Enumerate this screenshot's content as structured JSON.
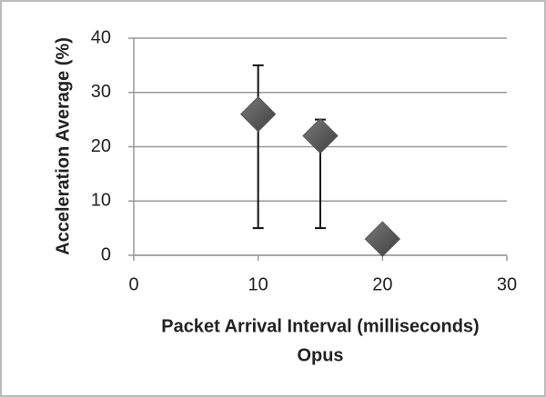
{
  "chart_data": {
    "type": "scatter",
    "x_label_lines": [
      "Packet Arrival Interval (milliseconds)",
      "Opus"
    ],
    "y_label": "Acceleration Average (%)",
    "series": [
      {
        "color": "#555555",
        "x": [
          10,
          15,
          20
        ],
        "values": [
          26,
          22,
          3
        ],
        "yerr_low": [
          21,
          17,
          0
        ],
        "yerr_high": [
          9,
          3,
          0
        ]
      }
    ],
    "xlim": [
      0,
      30
    ],
    "xticks": [
      0,
      10,
      20,
      30
    ],
    "ylim": [
      0,
      40
    ],
    "yticks": [
      0,
      10,
      20,
      30,
      40
    ],
    "grid": true
  }
}
